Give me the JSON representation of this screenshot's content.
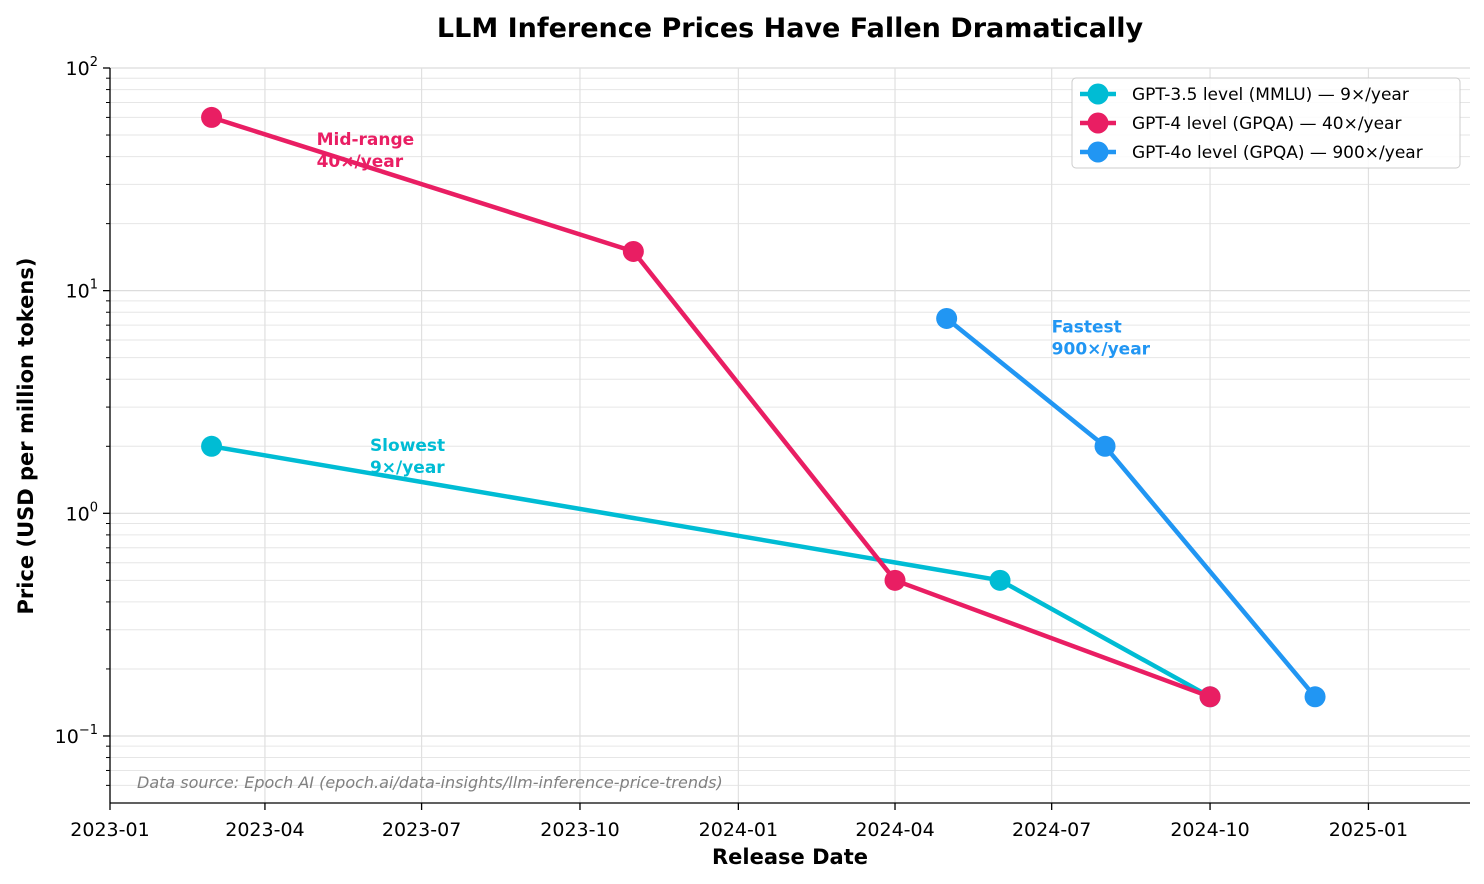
{
  "chart_data": {
    "type": "line",
    "title": "LLM Inference Prices Have Fallen Dramatically",
    "xlabel": "Release Date",
    "ylabel": "Price (USD per million tokens)",
    "yscale": "log",
    "ylim": [
      0.05,
      100
    ],
    "xlim": [
      "2023-01-01",
      "2025-03-01"
    ],
    "grid": true,
    "legend_position": "top-right",
    "x_ticks": [
      "2023-01",
      "2023-04",
      "2023-07",
      "2023-10",
      "2024-01",
      "2024-04",
      "2024-07",
      "2024-10",
      "2025-01"
    ],
    "y_ticks": [
      {
        "value": 0.1,
        "base": "10",
        "exp": "−1"
      },
      {
        "value": 1,
        "base": "10",
        "exp": "0"
      },
      {
        "value": 10,
        "base": "10",
        "exp": "1"
      },
      {
        "value": 100,
        "base": "10",
        "exp": "2"
      }
    ],
    "series": [
      {
        "name": "GPT-3.5 level (MMLU) — 9×/year",
        "color": "#00BCD4",
        "points": [
          {
            "x": "2023-03-01",
            "y": 2
          },
          {
            "x": "2024-06-01",
            "y": 0.5
          },
          {
            "x": "2024-10-01",
            "y": 0.15
          }
        ]
      },
      {
        "name": "GPT-4 level (GPQA) — 40×/year",
        "color": "#E91E63",
        "points": [
          {
            "x": "2023-03-01",
            "y": 60
          },
          {
            "x": "2023-11-01",
            "y": 15
          },
          {
            "x": "2024-04-01",
            "y": 0.5
          },
          {
            "x": "2024-10-01",
            "y": 0.15
          }
        ]
      },
      {
        "name": "GPT-4o level (GPQA) — 900×/year",
        "color": "#2196F3",
        "points": [
          {
            "x": "2024-05-01",
            "y": 7.5
          },
          {
            "x": "2024-08-01",
            "y": 2
          },
          {
            "x": "2024-12-01",
            "y": 0.15
          }
        ]
      }
    ],
    "annotations": [
      {
        "lines": [
          "Mid-range",
          "40×/year"
        ],
        "x": "2023-05-01",
        "y": 45,
        "color": "#E91E63"
      },
      {
        "lines": [
          "Slowest",
          "9×/year"
        ],
        "x": "2023-06-01",
        "y": 1.9,
        "color": "#00BCD4"
      },
      {
        "lines": [
          "Fastest",
          "900×/year"
        ],
        "x": "2024-07-01",
        "y": 6.5,
        "color": "#2196F3"
      }
    ],
    "source_note": "Data source: Epoch AI (epoch.ai/data-insights/llm-inference-price-trends)"
  }
}
